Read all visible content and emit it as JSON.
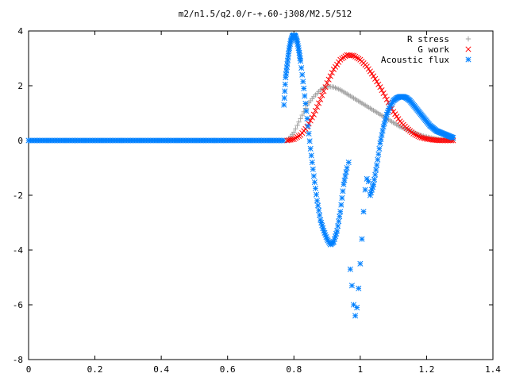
{
  "chart_data": {
    "type": "scatter",
    "title": "m2/n1.5/q2.0/r-+.60-j308/M2.5/512",
    "xlabel": "",
    "ylabel": "",
    "xlim": [
      0,
      1.4
    ],
    "ylim": [
      -8,
      4
    ],
    "xticks": [
      "0",
      "0.2",
      "0.4",
      "0.6",
      "0.8",
      "1",
      "1.2",
      "1.4"
    ],
    "yticks": [
      "4",
      "2",
      "0",
      "-2",
      "-4",
      "-6",
      "-8"
    ],
    "grid": false,
    "legend_position": "top-right",
    "series": [
      {
        "name": "R stress",
        "marker": "plus",
        "color": "#a0a0a0",
        "x": [
          0.78,
          0.8,
          0.82,
          0.84,
          0.86,
          0.88,
          0.9,
          0.92,
          0.94,
          0.96,
          0.98,
          1.0,
          1.02,
          1.04,
          1.06,
          1.08,
          1.1,
          1.12,
          1.14,
          1.16,
          1.18,
          1.2,
          1.22,
          1.24,
          1.26,
          1.28
        ],
        "y": [
          0.0,
          0.3,
          0.8,
          1.3,
          1.6,
          1.85,
          1.98,
          1.95,
          1.85,
          1.7,
          1.55,
          1.4,
          1.25,
          1.1,
          0.95,
          0.8,
          0.65,
          0.5,
          0.4,
          0.3,
          0.2,
          0.13,
          0.08,
          0.04,
          0.02,
          0.0
        ]
      },
      {
        "name": "G work",
        "marker": "cross",
        "color": "#ff0000",
        "x": [
          0.78,
          0.8,
          0.82,
          0.84,
          0.86,
          0.88,
          0.9,
          0.92,
          0.94,
          0.96,
          0.98,
          1.0,
          1.02,
          1.04,
          1.06,
          1.08,
          1.1,
          1.12,
          1.14,
          1.16,
          1.18,
          1.2,
          1.22,
          1.24,
          1.26,
          1.28
        ],
        "y": [
          0.0,
          0.05,
          0.2,
          0.5,
          0.95,
          1.5,
          2.1,
          2.6,
          2.95,
          3.12,
          3.1,
          2.95,
          2.7,
          2.35,
          1.95,
          1.5,
          1.05,
          0.7,
          0.45,
          0.25,
          0.12,
          0.06,
          0.02,
          0.0,
          0.0,
          0.0
        ]
      },
      {
        "name": "Acoustic flux",
        "marker": "star",
        "color": "#0080ff",
        "x": [
          0.77,
          0.775,
          0.78,
          0.785,
          0.79,
          0.795,
          0.8,
          0.805,
          0.81,
          0.815,
          0.82,
          0.83,
          0.84,
          0.85,
          0.86,
          0.87,
          0.88,
          0.89,
          0.9,
          0.91,
          0.92,
          0.93,
          0.94,
          0.95,
          0.96,
          0.965,
          0.97,
          0.975,
          0.98,
          0.985,
          0.99,
          0.995,
          1.0,
          1.005,
          1.01,
          1.015,
          1.02,
          1.025,
          1.03,
          1.04,
          1.05,
          1.06,
          1.07,
          1.08,
          1.09,
          1.1,
          1.11,
          1.12,
          1.13,
          1.14,
          1.15,
          1.16,
          1.17,
          1.18,
          1.19,
          1.2,
          1.21,
          1.22,
          1.23,
          1.24,
          1.25,
          1.26,
          1.27,
          1.28
        ],
        "y": [
          1.3,
          2.3,
          2.8,
          3.3,
          3.6,
          3.8,
          3.85,
          3.8,
          3.6,
          3.3,
          2.9,
          1.9,
          0.8,
          -0.3,
          -1.3,
          -2.2,
          -2.9,
          -3.3,
          -3.6,
          -3.8,
          -3.7,
          -3.3,
          -2.6,
          -1.6,
          -1.0,
          -0.8,
          -4.7,
          -5.3,
          -6.0,
          -6.4,
          -6.1,
          -5.4,
          -4.5,
          -3.6,
          -2.6,
          -1.8,
          -1.4,
          -1.5,
          -2.0,
          -1.6,
          -0.9,
          -0.1,
          0.5,
          0.95,
          1.25,
          1.45,
          1.55,
          1.6,
          1.6,
          1.55,
          1.45,
          1.3,
          1.15,
          1.0,
          0.85,
          0.7,
          0.55,
          0.45,
          0.35,
          0.3,
          0.25,
          0.2,
          0.15,
          0.1
        ]
      }
    ],
    "baseline_series": {
      "name": "Acoustic flux",
      "x_start": 0.0,
      "x_end": 0.77,
      "y": 0.0
    }
  }
}
